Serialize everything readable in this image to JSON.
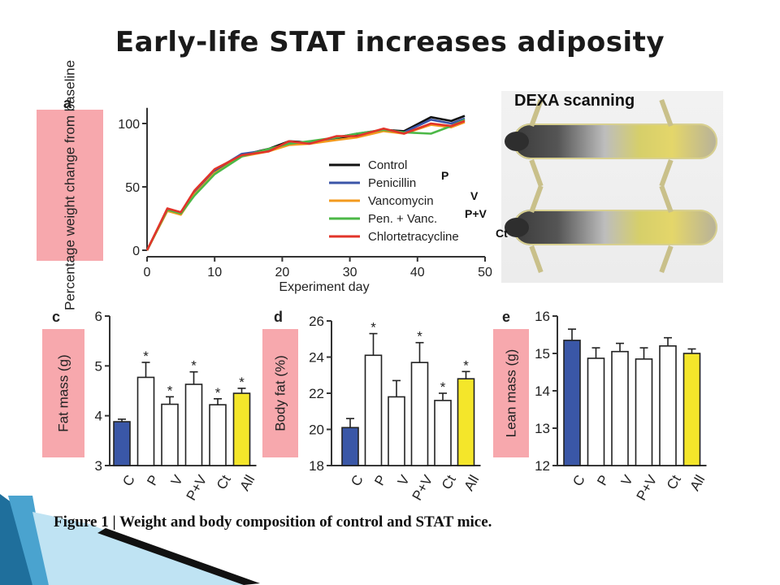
{
  "slide": {
    "title": "Early-life STAT increases adiposity",
    "caption": "Figure 1 | Weight and body composition of control and STAT mice.",
    "dexa_label": "DEXA scanning",
    "inline_labels": [
      "P",
      "V",
      "P+V",
      "Ct"
    ]
  },
  "colors": {
    "label_box": "#f7a8ad",
    "blue_bar": "#3a57a7",
    "yellow_bar": "#f4e62a",
    "decor_blue": "#1f6f9c"
  },
  "chart_data": [
    {
      "panel": "a",
      "type": "line",
      "xlabel": "Experiment day",
      "ylabel": "Percentage weight change from baseline",
      "xlim": [
        0,
        50
      ],
      "ylim": [
        0,
        120
      ],
      "xticks": [
        0,
        10,
        20,
        30,
        40,
        50
      ],
      "yticks": [
        0,
        50,
        100
      ],
      "legend_position": "bottom-right",
      "series": [
        {
          "name": "Control",
          "color": "#111111",
          "x": [
            0,
            3,
            5,
            7,
            10,
            14,
            18,
            21,
            24,
            28,
            31,
            35,
            38,
            42,
            45,
            47
          ],
          "y": [
            0,
            32,
            30,
            45,
            62,
            75,
            80,
            86,
            85,
            88,
            91,
            95,
            94,
            105,
            102,
            106
          ]
        },
        {
          "name": "Penicillin",
          "color": "#3b55a8",
          "x": [
            0,
            3,
            5,
            7,
            10,
            14,
            18,
            21,
            24,
            28,
            31,
            35,
            38,
            42,
            45,
            47
          ],
          "y": [
            0,
            32,
            30,
            46,
            63,
            76,
            79,
            85,
            85,
            89,
            92,
            95,
            93,
            103,
            100,
            104
          ]
        },
        {
          "name": "Vancomycin",
          "color": "#f39a1e",
          "x": [
            0,
            3,
            5,
            7,
            10,
            14,
            18,
            21,
            24,
            28,
            31,
            35,
            38,
            42,
            45,
            47
          ],
          "y": [
            0,
            31,
            28,
            44,
            61,
            74,
            78,
            83,
            84,
            87,
            89,
            94,
            92,
            99,
            97,
            101
          ]
        },
        {
          "name": "Pen. + Vanc.",
          "color": "#4cb847",
          "x": [
            0,
            3,
            5,
            7,
            10,
            14,
            18,
            21,
            24,
            28,
            31,
            35,
            38,
            42,
            45,
            47
          ],
          "y": [
            0,
            32,
            29,
            43,
            60,
            74,
            80,
            84,
            86,
            89,
            92,
            95,
            93,
            92,
            98,
            103
          ]
        },
        {
          "name": "Chlortetracycline",
          "color": "#e2342a",
          "x": [
            0,
            3,
            5,
            7,
            10,
            14,
            18,
            21,
            24,
            28,
            31,
            35,
            38,
            42,
            45,
            47
          ],
          "y": [
            0,
            33,
            30,
            47,
            64,
            75,
            78,
            86,
            84,
            90,
            90,
            96,
            92,
            100,
            98,
            102
          ]
        }
      ]
    },
    {
      "panel": "c",
      "type": "bar",
      "ylabel": "Fat mass (g)",
      "ylim": [
        3,
        6
      ],
      "yticks": [
        3,
        4,
        5,
        6
      ],
      "categories": [
        "C",
        "P",
        "V",
        "P+V",
        "Ct",
        "All"
      ],
      "values": [
        3.88,
        4.77,
        4.23,
        4.63,
        4.22,
        4.45
      ],
      "errors": [
        0.05,
        0.3,
        0.15,
        0.25,
        0.12,
        0.1
      ],
      "significant": [
        false,
        true,
        true,
        true,
        true,
        true
      ],
      "star_label": "*"
    },
    {
      "panel": "d",
      "type": "bar",
      "ylabel": "Body fat (%)",
      "ylim": [
        18,
        26
      ],
      "yticks": [
        18,
        20,
        22,
        24,
        26
      ],
      "categories": [
        "C",
        "P",
        "V",
        "P+V",
        "Ct",
        "All"
      ],
      "values": [
        20.1,
        24.1,
        21.8,
        23.7,
        21.6,
        22.8
      ],
      "errors": [
        0.5,
        1.2,
        0.9,
        1.1,
        0.4,
        0.4
      ],
      "significant": [
        false,
        true,
        false,
        true,
        true,
        true
      ],
      "star_label": "*"
    },
    {
      "panel": "e",
      "type": "bar",
      "ylabel": "Lean mass (g)",
      "ylim": [
        12,
        16
      ],
      "yticks": [
        12,
        13,
        14,
        15,
        16
      ],
      "categories": [
        "C",
        "P",
        "V",
        "P+V",
        "Ct",
        "All"
      ],
      "values": [
        15.35,
        14.87,
        15.05,
        14.85,
        15.2,
        15.0
      ],
      "errors": [
        0.3,
        0.28,
        0.22,
        0.3,
        0.22,
        0.12
      ],
      "significant": [
        false,
        false,
        false,
        false,
        false,
        false
      ],
      "star_label": "*"
    }
  ]
}
